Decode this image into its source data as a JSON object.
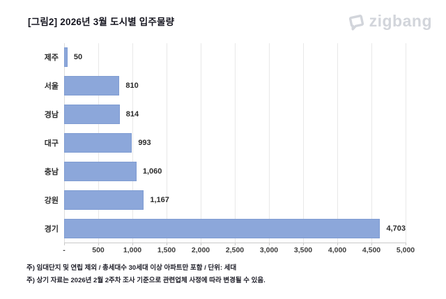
{
  "title": "[그림2] 2026년 3월 도시별 입주물량",
  "logo": {
    "text": "zigbang",
    "color": "#d2d5db",
    "icon": "zigbang-house-icon"
  },
  "chart_data": {
    "type": "bar",
    "orientation": "horizontal",
    "title": "[그림2] 2026년 3월 도시별 입주물량",
    "categories": [
      "제주",
      "서울",
      "경남",
      "대구",
      "충남",
      "강원",
      "경기"
    ],
    "values": [
      50,
      810,
      814,
      993,
      1060,
      1167,
      4703
    ],
    "value_labels": [
      "50",
      "810",
      "814",
      "993",
      "1,060",
      "1,167",
      "4,703"
    ],
    "x_ticks": [
      "-",
      "500",
      "1,000",
      "1,500",
      "2,000",
      "2,500",
      "3,000",
      "3,500",
      "4,000",
      "4,500",
      "5,000"
    ],
    "x_tick_values": [
      0,
      500,
      1000,
      1500,
      2000,
      2500,
      3000,
      3500,
      4000,
      4500,
      5000
    ],
    "xlim": [
      0,
      5000
    ],
    "xlabel": "",
    "ylabel": "",
    "grid": true,
    "legend": false,
    "bar_color": "#8ca7da",
    "unit": "세대"
  },
  "footnotes": [
    "주) 임대단지 및 연립 제외 / 총세대수 30세대 이상 아파트만 포함 / 단위: 세대",
    "주) 상기 자료는 2026년 2월 2주차 조사 기준으로 관련업체 사정에 따라 변경될 수 있음."
  ]
}
